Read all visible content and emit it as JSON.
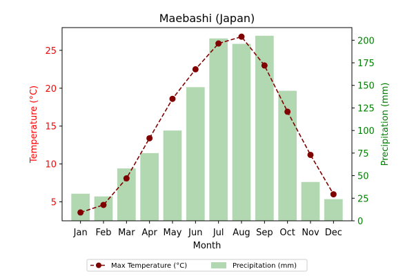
{
  "chart_data": {
    "type": "bar",
    "title": "Maebashi (Japan)",
    "xlabel": "Month",
    "categories": [
      "Jan",
      "Feb",
      "Mar",
      "Apr",
      "May",
      "Jun",
      "Jul",
      "Aug",
      "Sep",
      "Oct",
      "Nov",
      "Dec"
    ],
    "series": [
      {
        "name": "Precipitation (mm)",
        "type": "bar",
        "axis": "right",
        "color": "#b1d8b1",
        "values": [
          30,
          27,
          58,
          75,
          100,
          148,
          202,
          196,
          205,
          144,
          43,
          24
        ]
      },
      {
        "name": "Max Temperature (°C)",
        "type": "line",
        "axis": "left",
        "color": "#800000",
        "line_style": "dashed",
        "marker": "circle",
        "values": [
          3.6,
          4.6,
          8.1,
          13.4,
          18.6,
          22.5,
          25.9,
          26.8,
          23.0,
          16.9,
          11.2,
          6.0
        ]
      }
    ],
    "ylabel_left": "Temperature (°C)",
    "ylabel_left_color": "#ff0000",
    "ylim_left": [
      2.5,
      28
    ],
    "yticks_left": [
      5,
      10,
      15,
      20,
      25
    ],
    "ylabel_right": "Precipitation (mm)",
    "ylabel_right_color": "#008000",
    "ylim_right": [
      0,
      214
    ],
    "yticks_right": [
      0,
      25,
      50,
      75,
      100,
      125,
      150,
      175,
      200
    ],
    "grid": false,
    "legend": {
      "placement": "bottom-center",
      "entries": [
        "Max Temperature (°C)",
        "Precipitation (mm)"
      ]
    }
  }
}
